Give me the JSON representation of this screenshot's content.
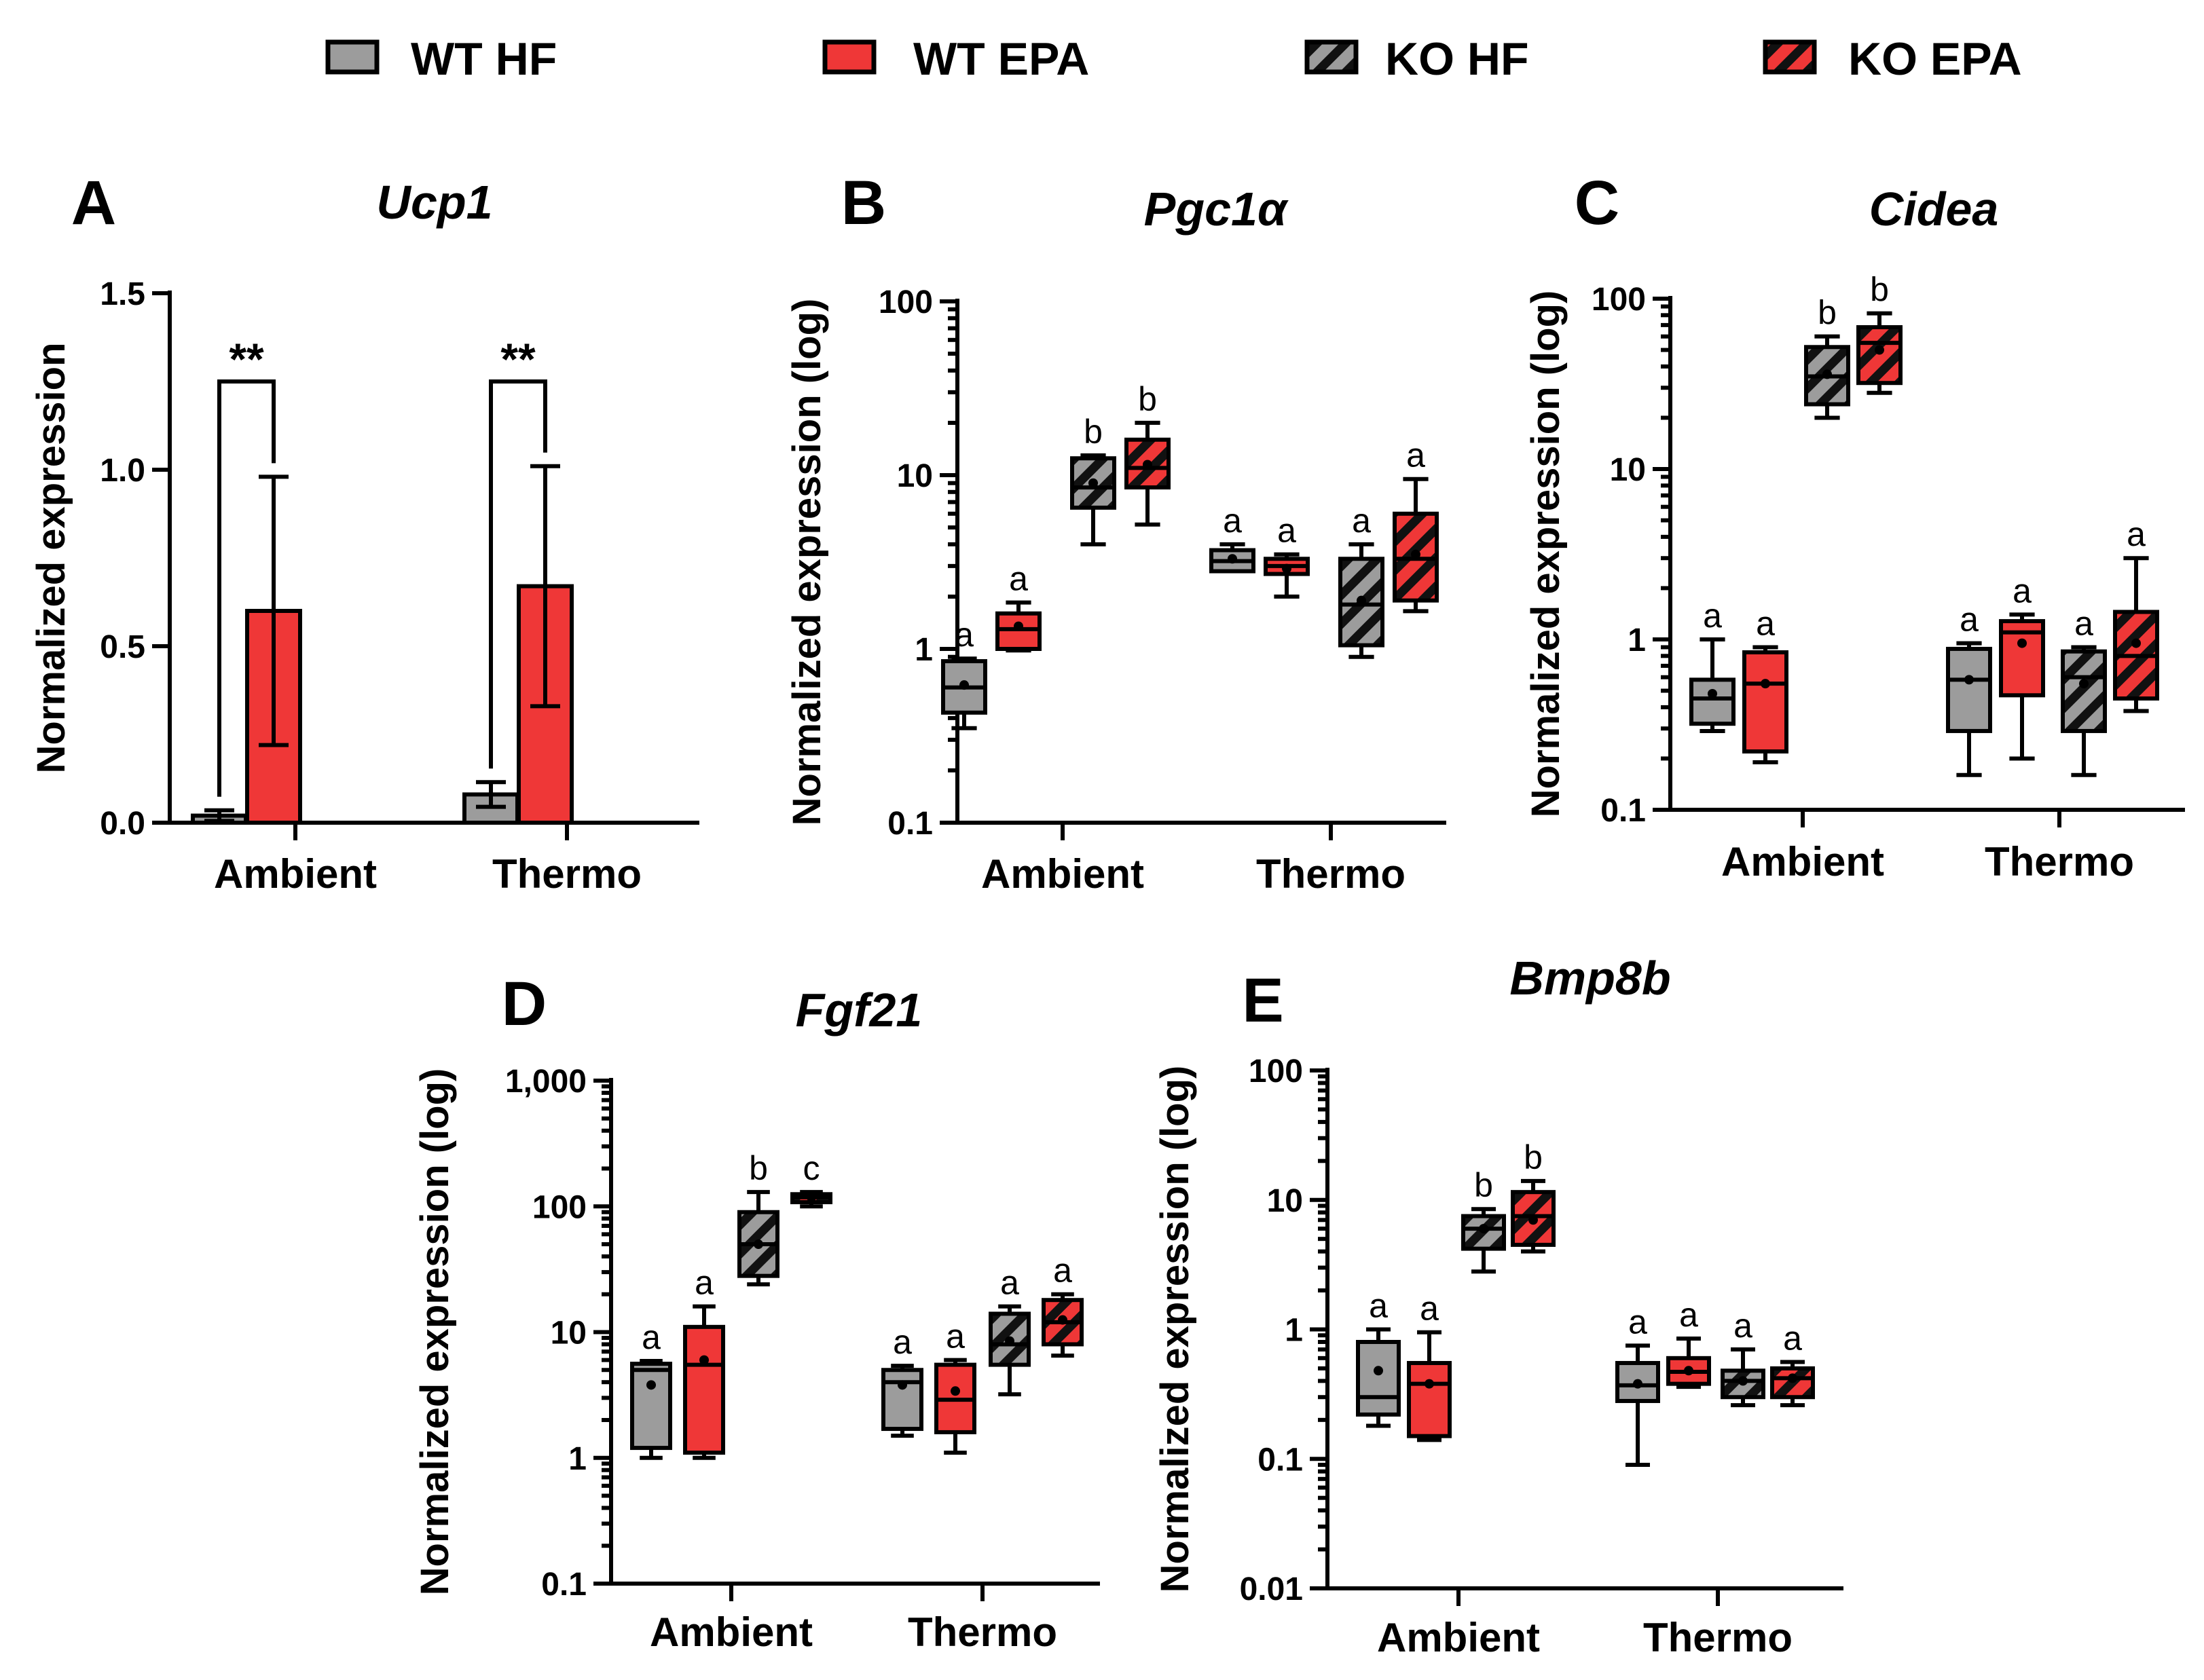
{
  "legend": [
    {
      "label": "WT HF",
      "color": "#9c9c9c",
      "hatched": false
    },
    {
      "label": "WT EPA",
      "color": "#ef3737",
      "hatched": false
    },
    {
      "label": "KO HF",
      "color": "#9c9c9c",
      "hatched": true
    },
    {
      "label": "KO EPA",
      "color": "#ef3737",
      "hatched": true
    }
  ],
  "chart_data": [
    {
      "panel": "A",
      "type": "bar",
      "title": "Ucp1",
      "ylabel": "Normalized expression",
      "yscale": "linear",
      "ylim": [
        0,
        1.5
      ],
      "yticks": [
        0,
        0.5,
        1.0,
        1.5
      ],
      "ytick_labels": [
        "0.0",
        "0.5",
        "1.0",
        "1.5"
      ],
      "categories": [
        "Ambient",
        "Thermo"
      ],
      "series": [
        {
          "name": "WT HF",
          "values": [
            0.02,
            0.08
          ],
          "err": [
            0.015,
            0.035
          ]
        },
        {
          "name": "WT EPA",
          "values": [
            0.6,
            0.67
          ],
          "err": [
            0.38,
            0.34
          ]
        },
        {
          "name": "KO HF",
          "values": [
            0,
            0
          ],
          "err": [
            0,
            0
          ]
        }
      ],
      "significance": [
        {
          "category": "Ambient",
          "label": "**"
        },
        {
          "category": "Thermo",
          "label": "**"
        }
      ]
    },
    {
      "panel": "B",
      "type": "box",
      "title": "Pgc1α",
      "ylabel": "Normalized expression (log)",
      "yscale": "log",
      "ylim": [
        0.1,
        100
      ],
      "yticks": [
        0.1,
        1,
        10,
        100
      ],
      "ytick_labels": [
        "0.1",
        "1",
        "10",
        "100"
      ],
      "categories": [
        "Ambient",
        "Thermo"
      ],
      "series": [
        {
          "name": "WT HF",
          "boxes": [
            {
              "min": 0.35,
              "q1": 0.43,
              "median": 0.6,
              "mean": 0.62,
              "q3": 0.85,
              "max": 0.88,
              "letter": "a"
            },
            {
              "min": 2.8,
              "q1": 2.8,
              "median": 3.2,
              "mean": 3.3,
              "q3": 3.7,
              "max": 4.0,
              "letter": "a"
            }
          ]
        },
        {
          "name": "WT EPA",
          "boxes": [
            {
              "min": 0.98,
              "q1": 1.0,
              "median": 1.3,
              "mean": 1.35,
              "q3": 1.6,
              "max": 1.85,
              "letter": "a"
            },
            {
              "min": 2.0,
              "q1": 2.7,
              "median": 3.0,
              "mean": 2.9,
              "q3": 3.3,
              "max": 3.5,
              "letter": "a"
            }
          ]
        },
        {
          "name": "KO HF",
          "boxes": [
            {
              "min": 4.0,
              "q1": 6.5,
              "median": 8.5,
              "mean": 9.0,
              "q3": 12.5,
              "max": 13.0,
              "letter": "b"
            },
            {
              "min": 0.9,
              "q1": 1.05,
              "median": 1.8,
              "mean": 1.9,
              "q3": 3.3,
              "max": 4.0,
              "letter": "a"
            }
          ]
        },
        {
          "name": "KO EPA",
          "boxes": [
            {
              "min": 5.2,
              "q1": 8.5,
              "median": 11.0,
              "mean": 11.5,
              "q3": 16.0,
              "max": 20.0,
              "letter": "b"
            },
            {
              "min": 1.65,
              "q1": 1.9,
              "median": 3.3,
              "mean": 3.5,
              "q3": 6.0,
              "max": 9.5,
              "letter": "a"
            }
          ]
        }
      ]
    },
    {
      "panel": "C",
      "type": "box",
      "title": "Cidea",
      "ylabel": "Normalized expression (log)",
      "yscale": "log",
      "ylim": [
        0.1,
        100
      ],
      "yticks": [
        0.1,
        1,
        10,
        100
      ],
      "ytick_labels": [
        "0.1",
        "1",
        "10",
        "100"
      ],
      "categories": [
        "Ambient",
        "Thermo"
      ],
      "series": [
        {
          "name": "WT HF",
          "boxes": [
            {
              "min": 0.29,
              "q1": 0.32,
              "median": 0.45,
              "mean": 0.48,
              "q3": 0.58,
              "max": 1.0,
              "letter": "a"
            },
            {
              "min": 0.16,
              "q1": 0.29,
              "median": 0.58,
              "mean": 0.58,
              "q3": 0.88,
              "max": 0.95,
              "letter": "a"
            }
          ]
        },
        {
          "name": "WT EPA",
          "boxes": [
            {
              "min": 0.19,
              "q1": 0.22,
              "median": 0.55,
              "mean": 0.55,
              "q3": 0.84,
              "max": 0.9,
              "letter": "a"
            },
            {
              "min": 0.2,
              "q1": 0.47,
              "median": 1.1,
              "mean": 0.95,
              "q3": 1.28,
              "max": 1.4,
              "letter": "a"
            }
          ]
        },
        {
          "name": "KO HF",
          "boxes": [
            {
              "min": 20.0,
              "q1": 24.0,
              "median": 35.0,
              "mean": 36.0,
              "q3": 52.0,
              "max": 60.0,
              "letter": "b"
            },
            {
              "min": 0.16,
              "q1": 0.29,
              "median": 0.6,
              "mean": 0.55,
              "q3": 0.85,
              "max": 0.9,
              "letter": "a"
            }
          ]
        },
        {
          "name": "KO EPA",
          "boxes": [
            {
              "min": 28.0,
              "q1": 32.0,
              "median": 55.0,
              "mean": 50.0,
              "q3": 68.0,
              "max": 82.0,
              "letter": "b"
            },
            {
              "min": 0.38,
              "q1": 0.45,
              "median": 0.8,
              "mean": 0.95,
              "q3": 1.45,
              "max": 3.0,
              "letter": "a"
            }
          ]
        }
      ]
    },
    {
      "panel": "D",
      "type": "box",
      "title": "Fgf21",
      "ylabel": "Normalized expression (log)",
      "yscale": "log",
      "ylim": [
        0.1,
        1000
      ],
      "yticks": [
        0.1,
        1,
        10,
        100,
        1000
      ],
      "ytick_labels": [
        "0.1",
        "1",
        "10",
        "100",
        "1,000"
      ],
      "categories": [
        "Ambient",
        "Thermo"
      ],
      "series": [
        {
          "name": "WT HF",
          "boxes": [
            {
              "min": 1.0,
              "q1": 1.2,
              "median": 5.0,
              "mean": 3.8,
              "q3": 5.6,
              "max": 5.9,
              "letter": "a"
            },
            {
              "min": 1.5,
              "q1": 1.7,
              "median": 4.0,
              "mean": 3.8,
              "q3": 5.0,
              "max": 5.4,
              "letter": "a"
            }
          ]
        },
        {
          "name": "WT EPA",
          "boxes": [
            {
              "min": 1.0,
              "q1": 1.1,
              "median": 5.5,
              "mean": 6.0,
              "q3": 11.0,
              "max": 16.0,
              "letter": "a"
            },
            {
              "min": 1.1,
              "q1": 1.6,
              "median": 2.9,
              "mean": 3.4,
              "q3": 5.5,
              "max": 6.0,
              "letter": "a"
            }
          ]
        },
        {
          "name": "KO HF",
          "boxes": [
            {
              "min": 24.0,
              "q1": 28.0,
              "median": 50.0,
              "mean": 50.0,
              "q3": 90.0,
              "max": 130.0,
              "letter": "b"
            },
            {
              "min": 3.2,
              "q1": 5.5,
              "median": 8.0,
              "mean": 8.5,
              "q3": 14.0,
              "max": 16.0,
              "letter": "a"
            }
          ]
        },
        {
          "name": "KO EPA",
          "boxes": [
            {
              "min": 100.0,
              "q1": 108.0,
              "median": 118.0,
              "mean": 118.0,
              "q3": 125.0,
              "max": 130.0,
              "letter": "c"
            },
            {
              "min": 6.5,
              "q1": 8.0,
              "median": 12.0,
              "mean": 12.5,
              "q3": 18.0,
              "max": 20.0,
              "letter": "a"
            }
          ]
        }
      ]
    },
    {
      "panel": "E",
      "type": "box",
      "title": "Bmp8b",
      "ylabel": "Normalized expression (log)",
      "yscale": "log",
      "ylim": [
        0.01,
        100
      ],
      "yticks": [
        0.01,
        0.1,
        1,
        10,
        100
      ],
      "ytick_labels": [
        "0.01",
        "0.1",
        "1",
        "10",
        "100"
      ],
      "categories": [
        "Ambient",
        "Thermo"
      ],
      "series": [
        {
          "name": "WT HF",
          "boxes": [
            {
              "min": 0.18,
              "q1": 0.22,
              "median": 0.3,
              "mean": 0.48,
              "q3": 0.8,
              "max": 1.0,
              "letter": "a"
            },
            {
              "min": 0.09,
              "q1": 0.28,
              "median": 0.37,
              "mean": 0.38,
              "q3": 0.55,
              "max": 0.75,
              "letter": "a"
            }
          ]
        },
        {
          "name": "WT EPA",
          "boxes": [
            {
              "min": 0.14,
              "q1": 0.15,
              "median": 0.38,
              "mean": 0.38,
              "q3": 0.55,
              "max": 0.95,
              "letter": "a"
            },
            {
              "min": 0.36,
              "q1": 0.38,
              "median": 0.47,
              "mean": 0.48,
              "q3": 0.6,
              "max": 0.85,
              "letter": "a"
            }
          ]
        },
        {
          "name": "KO HF",
          "boxes": [
            {
              "min": 2.8,
              "q1": 4.2,
              "median": 6.0,
              "mean": 6.0,
              "q3": 7.5,
              "max": 8.5,
              "letter": "b"
            },
            {
              "min": 0.26,
              "q1": 0.3,
              "median": 0.4,
              "mean": 0.4,
              "q3": 0.48,
              "max": 0.7,
              "letter": "a"
            }
          ]
        },
        {
          "name": "KO EPA",
          "boxes": [
            {
              "min": 4.0,
              "q1": 4.5,
              "median": 7.5,
              "mean": 7.0,
              "q3": 11.5,
              "max": 14.0,
              "letter": "b"
            },
            {
              "min": 0.26,
              "q1": 0.3,
              "median": 0.42,
              "mean": 0.42,
              "q3": 0.5,
              "max": 0.56,
              "letter": "a"
            }
          ]
        }
      ]
    }
  ]
}
